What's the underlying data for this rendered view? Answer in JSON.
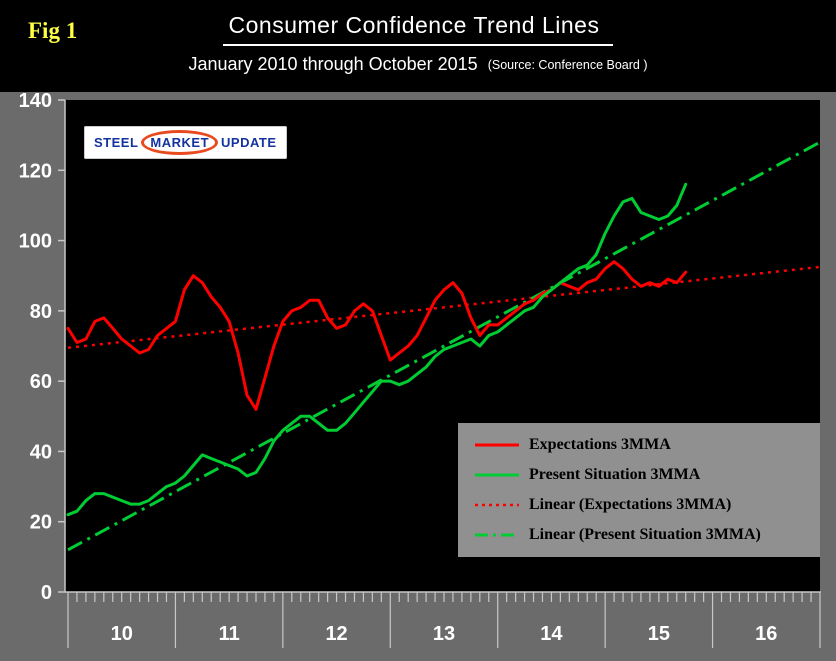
{
  "figure_label": "Fig 1",
  "title": "Consumer Confidence Trend Lines",
  "subtitle": "January 2010 through October 2015",
  "source": "(Source: Conference Board )",
  "logo": {
    "steel": "STEEL",
    "market": "MARKET",
    "update": "UPDATE"
  },
  "colors": {
    "page_background": "#000000",
    "chart_area_background": "#6b6b6b",
    "plot_background": "#000000",
    "axis": "#c8c8c8",
    "tick_label": "#ffffff",
    "title_text": "#ffffff",
    "figure_label_text": "#ffff45",
    "legend_background": "#909090",
    "legend_text": "#000000",
    "expectations_red": "#ff0000",
    "present_situation_green": "#00cc33"
  },
  "chart_data": {
    "type": "line",
    "title": "Consumer Confidence Trend Lines",
    "subtitle": "January 2010 through October 2015",
    "source": "(Source: Conference Board )",
    "frequency": "monthly",
    "x_start": "2010-01",
    "x_end": "2015-10",
    "x_axis_total_months": 84,
    "x_axis_years": [
      "10",
      "11",
      "12",
      "13",
      "14",
      "15",
      "16"
    ],
    "ylim": [
      0,
      140
    ],
    "yticks": [
      0,
      20,
      40,
      60,
      80,
      100,
      120,
      140
    ],
    "grid": false,
    "legend_position": "lower-right",
    "series": [
      {
        "name": "Expectations 3MMA",
        "color": "#ff0000",
        "style": "solid",
        "values": [
          75,
          71,
          72,
          77,
          78,
          75,
          72,
          70,
          68,
          69,
          73,
          75,
          77,
          86,
          90,
          88,
          84,
          81,
          77,
          68,
          56,
          52,
          61,
          70,
          77,
          80,
          81,
          83,
          83,
          78,
          75,
          76,
          80,
          82,
          80,
          73,
          66,
          68,
          70,
          73,
          78,
          83,
          86,
          88,
          85,
          78,
          73,
          76,
          76,
          78,
          80,
          82,
          83,
          85,
          86,
          88,
          87,
          86,
          88,
          89,
          92,
          94,
          92,
          89,
          87,
          88,
          87,
          89,
          88,
          91
        ]
      },
      {
        "name": "Present Situation 3MMA",
        "color": "#00cc33",
        "style": "solid",
        "values": [
          22,
          23,
          26,
          28,
          28,
          27,
          26,
          25,
          25,
          26,
          28,
          30,
          31,
          33,
          36,
          39,
          38,
          37,
          36,
          35,
          33,
          34,
          38,
          43,
          46,
          48,
          50,
          50,
          48,
          46,
          46,
          48,
          51,
          54,
          57,
          60,
          60,
          59,
          60,
          62,
          64,
          67,
          69,
          70,
          71,
          72,
          70,
          73,
          74,
          76,
          78,
          80,
          81,
          84,
          86,
          88,
          90,
          92,
          93,
          96,
          102,
          107,
          111,
          112,
          108,
          107,
          106,
          107,
          110,
          116
        ]
      },
      {
        "name": "Linear (Expectations 3MMA)",
        "color": "#ff0000",
        "style": "dotted",
        "trend": {
          "start_value": 69.5,
          "end_value": 92.5
        }
      },
      {
        "name": "Linear (Present Situation 3MMA)",
        "color": "#00cc33",
        "style": "dashdot",
        "trend": {
          "start_value": 12,
          "end_value": 128
        }
      }
    ]
  }
}
